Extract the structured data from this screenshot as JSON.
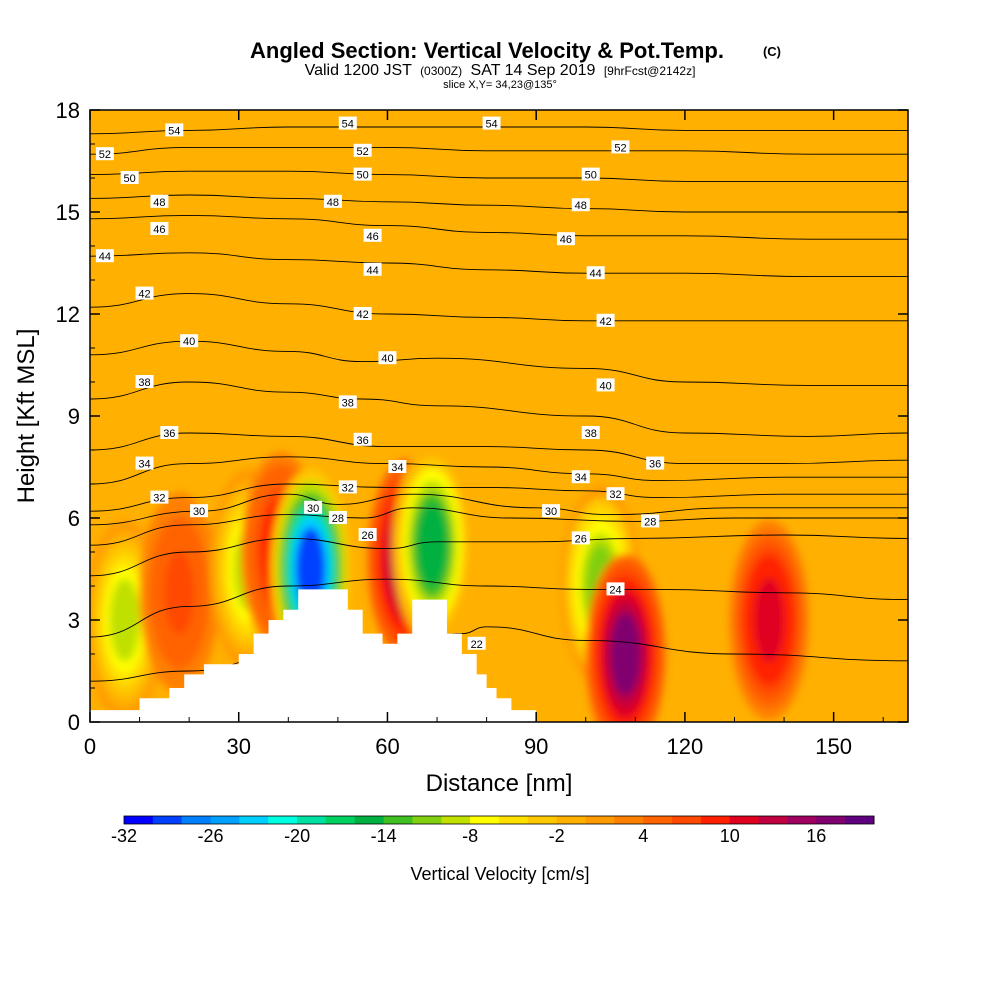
{
  "chart_data": {
    "type": "heatmap",
    "title": "Angled Section: Vertical Velocity & Pot.Temp.",
    "title_unit": "(C)",
    "subtitle": {
      "prefix": "Valid 1200 JST",
      "utc": "(0300Z)",
      "date": "SAT 14 Sep 2019",
      "forecast": "[9hrFcst@2142z]"
    },
    "slice_label": "slice X,Y= 34,23@135°",
    "xlabel": "Distance [nm]",
    "ylabel": "Height [Kft MSL]",
    "xlim": [
      0,
      165
    ],
    "ylim": [
      0,
      18
    ],
    "x_ticks": [
      "0",
      "30",
      "60",
      "90",
      "120",
      "150"
    ],
    "y_ticks": [
      "0",
      "3",
      "6",
      "9",
      "12",
      "15",
      "18"
    ],
    "colorbar": {
      "label": "Vertical Velocity [cm/s]",
      "tick_labels": [
        "-32",
        "-26",
        "-20",
        "-14",
        "-8",
        "-2",
        "4",
        "10",
        "16"
      ],
      "colors": [
        "#0000ff",
        "#0040ff",
        "#0080ff",
        "#00a0ff",
        "#00d0ff",
        "#00ffe0",
        "#00e0a0",
        "#00d060",
        "#00b040",
        "#40c020",
        "#80d010",
        "#c0e000",
        "#ffff00",
        "#ffe000",
        "#ffc800",
        "#ffb000",
        "#ff9a00",
        "#ff8000",
        "#ff6400",
        "#ff4800",
        "#ff2000",
        "#e00020",
        "#c00040",
        "#a00060",
        "#800070",
        "#600080"
      ]
    },
    "background_color": "#ffb000",
    "updraft_cores": [
      {
        "x": 7,
        "y": 3.0,
        "value": -9
      },
      {
        "x": 18,
        "y": 3.8,
        "value": 6
      },
      {
        "x": 32,
        "y": 4.5,
        "value": -10
      },
      {
        "x": 38.5,
        "y": 5.0,
        "value": 9
      },
      {
        "x": 44.5,
        "y": 4.5,
        "value": -30
      },
      {
        "x": 64,
        "y": 4.8,
        "value": 14
      },
      {
        "x": 69,
        "y": 5.2,
        "value": -16
      },
      {
        "x": 103,
        "y": 4.0,
        "value": -12
      },
      {
        "x": 108,
        "y": 2.0,
        "value": 16
      },
      {
        "x": 137,
        "y": 3.0,
        "value": 11
      }
    ],
    "terrain": [
      {
        "x": 0,
        "y": 0.35
      },
      {
        "x": 10,
        "y": 0.35
      },
      {
        "x": 10,
        "y": 0.7
      },
      {
        "x": 16,
        "y": 0.7
      },
      {
        "x": 16,
        "y": 1.0
      },
      {
        "x": 19,
        "y": 1.0
      },
      {
        "x": 19,
        "y": 1.4
      },
      {
        "x": 23,
        "y": 1.4
      },
      {
        "x": 23,
        "y": 1.7
      },
      {
        "x": 30,
        "y": 1.7
      },
      {
        "x": 30,
        "y": 2.0
      },
      {
        "x": 33,
        "y": 2.0
      },
      {
        "x": 33,
        "y": 2.6
      },
      {
        "x": 36,
        "y": 2.6
      },
      {
        "x": 36,
        "y": 3.0
      },
      {
        "x": 39,
        "y": 3.0
      },
      {
        "x": 39,
        "y": 3.3
      },
      {
        "x": 42,
        "y": 3.3
      },
      {
        "x": 42,
        "y": 3.9
      },
      {
        "x": 52,
        "y": 3.9
      },
      {
        "x": 52,
        "y": 3.3
      },
      {
        "x": 55,
        "y": 3.3
      },
      {
        "x": 55,
        "y": 2.6
      },
      {
        "x": 59,
        "y": 2.6
      },
      {
        "x": 59,
        "y": 2.3
      },
      {
        "x": 62,
        "y": 2.3
      },
      {
        "x": 62,
        "y": 2.6
      },
      {
        "x": 65,
        "y": 2.6
      },
      {
        "x": 65,
        "y": 3.6
      },
      {
        "x": 72,
        "y": 3.6
      },
      {
        "x": 72,
        "y": 2.6
      },
      {
        "x": 75,
        "y": 2.6
      },
      {
        "x": 75,
        "y": 2.0
      },
      {
        "x": 78,
        "y": 2.0
      },
      {
        "x": 78,
        "y": 1.4
      },
      {
        "x": 80,
        "y": 1.4
      },
      {
        "x": 80,
        "y": 1.0
      },
      {
        "x": 82,
        "y": 1.0
      },
      {
        "x": 82,
        "y": 0.7
      },
      {
        "x": 85,
        "y": 0.7
      },
      {
        "x": 85,
        "y": 0.35
      },
      {
        "x": 90,
        "y": 0.35
      },
      {
        "x": 90,
        "y": 0.0
      }
    ],
    "isentropes": [
      {
        "theta": "22",
        "pts": [
          [
            0,
            1.2
          ],
          [
            20,
            1.5
          ],
          [
            40,
            2.0
          ],
          [
            60,
            2.2
          ],
          [
            75,
            2.6
          ],
          [
            80,
            2.8
          ],
          [
            100,
            2.4
          ],
          [
            130,
            2.0
          ],
          [
            165,
            1.8
          ]
        ]
      },
      {
        "theta": "24",
        "pts": [
          [
            0,
            2.5
          ],
          [
            20,
            3.4
          ],
          [
            40,
            4.0
          ],
          [
            60,
            4.2
          ],
          [
            80,
            4.0
          ],
          [
            100,
            3.9
          ],
          [
            115,
            3.9
          ],
          [
            140,
            3.8
          ],
          [
            165,
            3.6
          ]
        ]
      },
      {
        "theta": "26",
        "pts": [
          [
            0,
            4.3
          ],
          [
            20,
            5.0
          ],
          [
            40,
            5.4
          ],
          [
            60,
            5.1
          ],
          [
            70,
            5.3
          ],
          [
            90,
            5.3
          ],
          [
            110,
            5.4
          ],
          [
            140,
            5.5
          ],
          [
            165,
            5.4
          ]
        ]
      },
      {
        "theta": "28",
        "pts": [
          [
            0,
            5.2
          ],
          [
            20,
            5.8
          ],
          [
            40,
            6.1
          ],
          [
            55,
            6.0
          ],
          [
            65,
            6.3
          ],
          [
            85,
            6.0
          ],
          [
            110,
            5.9
          ],
          [
            130,
            6.0
          ],
          [
            165,
            6.0
          ]
        ]
      },
      {
        "theta": "30",
        "pts": [
          [
            0,
            5.8
          ],
          [
            22,
            6.2
          ],
          [
            40,
            6.7
          ],
          [
            50,
            6.4
          ],
          [
            65,
            6.7
          ],
          [
            90,
            6.3
          ],
          [
            105,
            6.1
          ],
          [
            130,
            6.3
          ],
          [
            165,
            6.3
          ]
        ]
      },
      {
        "theta": "32",
        "pts": [
          [
            0,
            6.2
          ],
          [
            20,
            6.6
          ],
          [
            40,
            7.0
          ],
          [
            60,
            6.9
          ],
          [
            80,
            6.9
          ],
          [
            100,
            6.8
          ],
          [
            115,
            6.6
          ],
          [
            140,
            6.7
          ],
          [
            165,
            6.7
          ]
        ]
      },
      {
        "theta": "34",
        "pts": [
          [
            0,
            7.0
          ],
          [
            20,
            7.6
          ],
          [
            40,
            7.8
          ],
          [
            60,
            7.6
          ],
          [
            80,
            7.5
          ],
          [
            100,
            7.3
          ],
          [
            115,
            7.1
          ],
          [
            140,
            7.2
          ],
          [
            165,
            7.2
          ]
        ]
      },
      {
        "theta": "36",
        "pts": [
          [
            0,
            8.0
          ],
          [
            20,
            8.5
          ],
          [
            40,
            8.4
          ],
          [
            60,
            8.1
          ],
          [
            80,
            8.1
          ],
          [
            100,
            8.0
          ],
          [
            120,
            7.6
          ],
          [
            140,
            7.6
          ],
          [
            165,
            7.7
          ]
        ]
      },
      {
        "theta": "38",
        "pts": [
          [
            0,
            9.5
          ],
          [
            20,
            10.0
          ],
          [
            40,
            9.7
          ],
          [
            55,
            9.5
          ],
          [
            70,
            9.3
          ],
          [
            100,
            9.0
          ],
          [
            120,
            8.5
          ],
          [
            145,
            8.4
          ],
          [
            165,
            8.5
          ]
        ]
      },
      {
        "theta": "40",
        "pts": [
          [
            0,
            10.8
          ],
          [
            20,
            11.2
          ],
          [
            40,
            10.9
          ],
          [
            55,
            10.6
          ],
          [
            70,
            10.7
          ],
          [
            100,
            10.4
          ],
          [
            120,
            10.0
          ],
          [
            145,
            9.9
          ],
          [
            165,
            9.9
          ]
        ]
      },
      {
        "theta": "42",
        "pts": [
          [
            0,
            12.2
          ],
          [
            20,
            12.6
          ],
          [
            40,
            12.3
          ],
          [
            60,
            12.0
          ],
          [
            80,
            11.9
          ],
          [
            100,
            11.8
          ],
          [
            120,
            11.8
          ],
          [
            145,
            11.8
          ],
          [
            165,
            11.8
          ]
        ]
      },
      {
        "theta": "44",
        "pts": [
          [
            0,
            13.7
          ],
          [
            20,
            13.8
          ],
          [
            40,
            13.6
          ],
          [
            60,
            13.5
          ],
          [
            80,
            13.3
          ],
          [
            100,
            13.2
          ],
          [
            120,
            13.2
          ],
          [
            145,
            13.1
          ],
          [
            165,
            13.1
          ]
        ]
      },
      {
        "theta": "46",
        "pts": [
          [
            0,
            14.8
          ],
          [
            20,
            14.9
          ],
          [
            40,
            14.8
          ],
          [
            60,
            14.6
          ],
          [
            80,
            14.4
          ],
          [
            100,
            14.3
          ],
          [
            120,
            14.3
          ],
          [
            145,
            14.2
          ],
          [
            165,
            14.2
          ]
        ]
      },
      {
        "theta": "48",
        "pts": [
          [
            0,
            15.4
          ],
          [
            20,
            15.5
          ],
          [
            40,
            15.4
          ],
          [
            60,
            15.3
          ],
          [
            80,
            15.2
          ],
          [
            100,
            15.1
          ],
          [
            120,
            15.0
          ],
          [
            145,
            15.0
          ],
          [
            165,
            15.0
          ]
        ]
      },
      {
        "theta": "50",
        "pts": [
          [
            0,
            16.1
          ],
          [
            20,
            16.2
          ],
          [
            40,
            16.2
          ],
          [
            60,
            16.1
          ],
          [
            80,
            16.0
          ],
          [
            100,
            16.0
          ],
          [
            120,
            15.9
          ],
          [
            145,
            15.9
          ],
          [
            165,
            15.9
          ]
        ]
      },
      {
        "theta": "52",
        "pts": [
          [
            0,
            16.7
          ],
          [
            20,
            16.9
          ],
          [
            40,
            16.9
          ],
          [
            60,
            16.9
          ],
          [
            80,
            16.8
          ],
          [
            100,
            16.8
          ],
          [
            120,
            16.8
          ],
          [
            145,
            16.7
          ],
          [
            165,
            16.7
          ]
        ]
      },
      {
        "theta": "54",
        "pts": [
          [
            0,
            17.3
          ],
          [
            20,
            17.4
          ],
          [
            40,
            17.5
          ],
          [
            60,
            17.5
          ],
          [
            80,
            17.5
          ],
          [
            100,
            17.5
          ],
          [
            120,
            17.4
          ],
          [
            145,
            17.4
          ],
          [
            165,
            17.4
          ]
        ]
      }
    ],
    "contour_labels": [
      {
        "text": "54",
        "x": 17,
        "y": 17.4
      },
      {
        "text": "54",
        "x": 52,
        "y": 17.6
      },
      {
        "text": "54",
        "x": 81,
        "y": 17.6
      },
      {
        "text": "52",
        "x": 3,
        "y": 16.7
      },
      {
        "text": "52",
        "x": 55,
        "y": 16.8
      },
      {
        "text": "52",
        "x": 107,
        "y": 16.9
      },
      {
        "text": "50",
        "x": 8,
        "y": 16.0
      },
      {
        "text": "50",
        "x": 55,
        "y": 16.1
      },
      {
        "text": "50",
        "x": 101,
        "y": 16.1
      },
      {
        "text": "48",
        "x": 14,
        "y": 15.3
      },
      {
        "text": "48",
        "x": 49,
        "y": 15.3
      },
      {
        "text": "48",
        "x": 99,
        "y": 15.2
      },
      {
        "text": "46",
        "x": 14,
        "y": 14.5
      },
      {
        "text": "46",
        "x": 57,
        "y": 14.3
      },
      {
        "text": "46",
        "x": 96,
        "y": 14.2
      },
      {
        "text": "44",
        "x": 3,
        "y": 13.7
      },
      {
        "text": "44",
        "x": 57,
        "y": 13.3
      },
      {
        "text": "44",
        "x": 102,
        "y": 13.2
      },
      {
        "text": "42",
        "x": 11,
        "y": 12.6
      },
      {
        "text": "42",
        "x": 55,
        "y": 12.0
      },
      {
        "text": "42",
        "x": 104,
        "y": 11.8
      },
      {
        "text": "40",
        "x": 20,
        "y": 11.2
      },
      {
        "text": "40",
        "x": 60,
        "y": 10.7
      },
      {
        "text": "40",
        "x": 104,
        "y": 9.9
      },
      {
        "text": "38",
        "x": 11,
        "y": 10.0
      },
      {
        "text": "38",
        "x": 52,
        "y": 9.4
      },
      {
        "text": "38",
        "x": 101,
        "y": 8.5
      },
      {
        "text": "36",
        "x": 16,
        "y": 8.5
      },
      {
        "text": "36",
        "x": 55,
        "y": 8.3
      },
      {
        "text": "36",
        "x": 114,
        "y": 7.6
      },
      {
        "text": "34",
        "x": 11,
        "y": 7.6
      },
      {
        "text": "34",
        "x": 62,
        "y": 7.5
      },
      {
        "text": "34",
        "x": 99,
        "y": 7.2
      },
      {
        "text": "32",
        "x": 14,
        "y": 6.6
      },
      {
        "text": "32",
        "x": 52,
        "y": 6.9
      },
      {
        "text": "32",
        "x": 106,
        "y": 6.7
      },
      {
        "text": "30",
        "x": 22,
        "y": 6.2
      },
      {
        "text": "30",
        "x": 45,
        "y": 6.3
      },
      {
        "text": "30",
        "x": 93,
        "y": 6.2
      },
      {
        "text": "28",
        "x": 50,
        "y": 6.0
      },
      {
        "text": "28",
        "x": 113,
        "y": 5.9
      },
      {
        "text": "26",
        "x": 56,
        "y": 5.5
      },
      {
        "text": "26",
        "x": 99,
        "y": 5.4
      },
      {
        "text": "24",
        "x": 106,
        "y": 3.9
      },
      {
        "text": "22",
        "x": 78,
        "y": 2.3
      }
    ]
  }
}
